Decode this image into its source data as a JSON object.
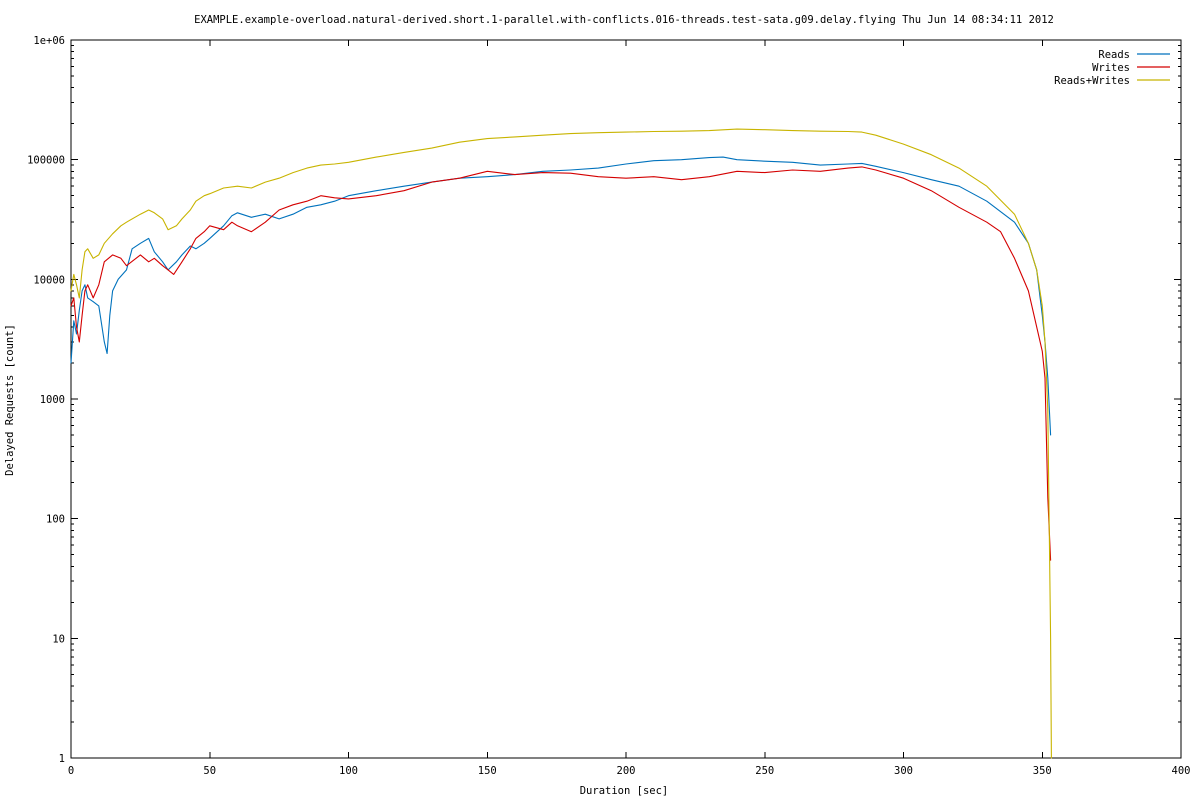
{
  "chart_data": {
    "type": "line",
    "title": "EXAMPLE.example-overload.natural-derived.short.1-parallel.with-conflicts.016-threads.test-sata.g09.delay.flying Thu Jun 14 08:34:11 2012",
    "xlabel": "Duration [sec]",
    "ylabel": "Delayed Requests [count]",
    "xlim": [
      0,
      400
    ],
    "ylim": [
      1,
      1000000
    ],
    "yscale": "log",
    "grid": false,
    "legend_position": "top-right",
    "x_ticks": [
      0,
      50,
      100,
      150,
      200,
      250,
      300,
      350,
      400
    ],
    "x_tick_labels": [
      "0",
      "50",
      "100",
      "150",
      "200",
      "250",
      "300",
      "350",
      "400"
    ],
    "y_ticks": [
      1,
      10,
      100,
      1000,
      10000,
      100000,
      1000000
    ],
    "y_tick_labels": [
      "1",
      "10",
      "100",
      "1000",
      "10000",
      "100000",
      "1e+06"
    ],
    "series": [
      {
        "name": "Reads",
        "color": "#0072bd",
        "x": [
          0,
          1,
          2,
          3,
          4,
          5,
          6,
          8,
          10,
          12,
          13,
          14,
          15,
          17,
          20,
          22,
          25,
          28,
          30,
          33,
          35,
          38,
          40,
          43,
          45,
          48,
          50,
          55,
          58,
          60,
          65,
          70,
          75,
          80,
          85,
          90,
          95,
          100,
          110,
          120,
          130,
          140,
          150,
          160,
          170,
          180,
          190,
          200,
          210,
          220,
          230,
          235,
          240,
          250,
          260,
          270,
          280,
          285,
          290,
          300,
          310,
          320,
          330,
          340,
          345,
          348,
          350,
          351,
          352,
          353
        ],
        "y": [
          2000,
          4500,
          3500,
          5500,
          8000,
          9000,
          7000,
          6500,
          6000,
          3000,
          2400,
          5000,
          8000,
          10000,
          12000,
          18000,
          20000,
          22000,
          17000,
          14000,
          12000,
          14000,
          16000,
          19000,
          18000,
          20000,
          22000,
          28000,
          34000,
          36000,
          33000,
          35000,
          32000,
          35000,
          40000,
          42000,
          45000,
          50000,
          55000,
          60000,
          65000,
          70000,
          72000,
          75000,
          80000,
          82000,
          85000,
          92000,
          98000,
          100000,
          104000,
          105000,
          100000,
          97000,
          95000,
          90000,
          92000,
          93000,
          88000,
          78000,
          68000,
          60000,
          45000,
          30000,
          20000,
          12000,
          5000,
          3000,
          1500,
          500
        ]
      },
      {
        "name": "Writes",
        "color": "#d40000",
        "x": [
          0,
          1,
          2,
          3,
          4,
          5,
          6,
          8,
          10,
          12,
          15,
          18,
          20,
          25,
          28,
          30,
          33,
          35,
          37,
          40,
          43,
          45,
          48,
          50,
          55,
          58,
          60,
          65,
          70,
          75,
          80,
          85,
          90,
          95,
          100,
          110,
          120,
          130,
          140,
          150,
          160,
          170,
          180,
          190,
          200,
          210,
          220,
          230,
          240,
          250,
          260,
          270,
          280,
          285,
          290,
          300,
          310,
          320,
          330,
          335,
          340,
          345,
          348,
          350,
          351,
          352,
          353
        ],
        "y": [
          6000,
          7000,
          4000,
          3000,
          5000,
          8000,
          9000,
          7000,
          9000,
          14000,
          16000,
          15000,
          13000,
          16000,
          14000,
          15000,
          13000,
          12000,
          11000,
          14000,
          18000,
          22000,
          25000,
          28000,
          26000,
          30000,
          28000,
          25000,
          30000,
          38000,
          42000,
          45000,
          50000,
          48000,
          47000,
          50000,
          55000,
          65000,
          70000,
          80000,
          75000,
          78000,
          77000,
          72000,
          70000,
          72000,
          68000,
          72000,
          80000,
          78000,
          82000,
          80000,
          85000,
          87000,
          82000,
          70000,
          55000,
          40000,
          30000,
          25000,
          15000,
          8000,
          4000,
          2500,
          1500,
          150,
          45
        ]
      },
      {
        "name": "Reads+Writes",
        "color": "#c8b400",
        "x": [
          0,
          1,
          2,
          3,
          4,
          5,
          6,
          8,
          10,
          12,
          15,
          18,
          20,
          25,
          28,
          30,
          33,
          35,
          38,
          40,
          43,
          45,
          48,
          50,
          55,
          60,
          65,
          70,
          75,
          80,
          85,
          90,
          95,
          100,
          110,
          120,
          130,
          140,
          150,
          160,
          170,
          180,
          190,
          200,
          210,
          220,
          230,
          240,
          250,
          260,
          270,
          280,
          285,
          290,
          300,
          310,
          320,
          330,
          340,
          345,
          348,
          350,
          351,
          352,
          353,
          353.3
        ],
        "y": [
          8000,
          11000,
          9000,
          7000,
          12000,
          17000,
          18000,
          15000,
          16000,
          20000,
          24000,
          28000,
          30000,
          35000,
          38000,
          36000,
          32000,
          26000,
          28000,
          32000,
          38000,
          45000,
          50000,
          52000,
          58000,
          60000,
          58000,
          65000,
          70000,
          78000,
          85000,
          90000,
          92000,
          95000,
          105000,
          115000,
          125000,
          140000,
          150000,
          155000,
          160000,
          165000,
          168000,
          170000,
          172000,
          173000,
          175000,
          180000,
          178000,
          175000,
          173000,
          172000,
          170000,
          160000,
          135000,
          110000,
          85000,
          60000,
          35000,
          20000,
          12000,
          6000,
          3000,
          800,
          10,
          1
        ]
      }
    ]
  }
}
